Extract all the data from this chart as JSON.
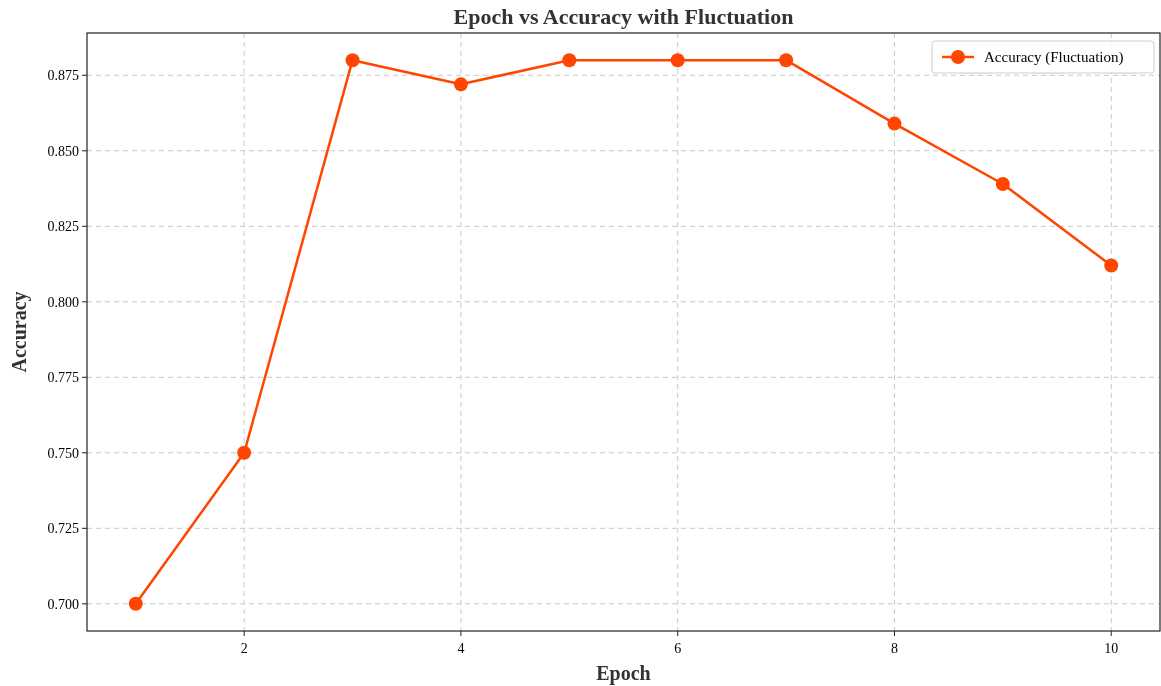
{
  "chart_data": {
    "type": "line",
    "title": "Epoch vs Accuracy with Fluctuation",
    "xlabel": "Epoch",
    "ylabel": "Accuracy",
    "x": [
      1,
      2,
      3,
      4,
      5,
      6,
      7,
      8,
      9,
      10
    ],
    "series": [
      {
        "name": "Accuracy (Fluctuation)",
        "color": "#ff4500",
        "values": [
          0.7,
          0.75,
          0.88,
          0.872,
          0.88,
          0.88,
          0.88,
          0.859,
          0.839,
          0.812
        ]
      }
    ],
    "xlim": [
      0.55,
      10.45
    ],
    "xticks": [
      2,
      4,
      6,
      8,
      10
    ],
    "ylim": [
      0.691,
      0.889
    ],
    "yticks": [
      {
        "value": 0.7,
        "label": "0.700"
      },
      {
        "value": 0.725,
        "label": "0.725"
      },
      {
        "value": 0.75,
        "label": "0.750"
      },
      {
        "value": 0.775,
        "label": "0.775"
      },
      {
        "value": 0.8,
        "label": "0.800"
      },
      {
        "value": 0.825,
        "label": "0.825"
      },
      {
        "value": 0.85,
        "label": "0.850"
      },
      {
        "value": 0.875,
        "label": "0.875"
      }
    ],
    "grid": true,
    "legend": "top right",
    "marker": "circle",
    "line_style": "solid"
  }
}
